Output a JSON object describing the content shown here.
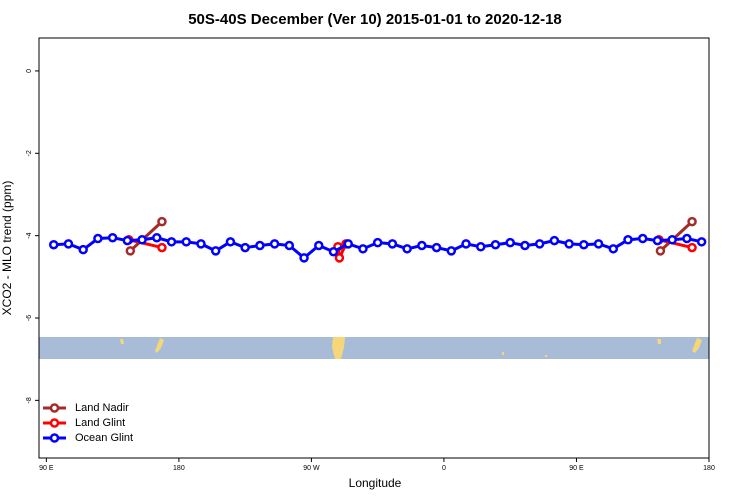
{
  "chart_data": {
    "type": "line",
    "title": "50S-40S December (Ver 10)   2015-01-01 to 2020-12-18",
    "x_label": "Longitude",
    "y_label": "XCO2 - MLO trend (ppm)",
    "xlim": [
      85,
      540
    ],
    "ylim": [
      -9.4,
      0.8
    ],
    "xticks": [
      {
        "value": 90,
        "label": "90 E"
      },
      180,
      {
        "value": 270,
        "label": "90 W"
      },
      {
        "value": 360,
        "label": "0"
      },
      {
        "value": 450,
        "label": "90 E"
      },
      {
        "value": 540,
        "label": "180"
      }
    ],
    "yticks": [
      0,
      -2,
      -4,
      -6,
      -8
    ],
    "legend": "bottom-left",
    "series": [
      {
        "name": "Land Nadir",
        "color": "#a52a2a",
        "x": [
          147,
          168.5,
          null,
          507,
          528.5
        ],
        "values": [
          -4.37,
          -3.66,
          null,
          -4.37,
          -3.66
        ]
      },
      {
        "name": "Land Glint",
        "color": "#ff0000",
        "x": [
          146,
          168.5,
          null,
          288,
          289,
          293.5,
          null,
          506,
          528.5
        ],
        "values": [
          -4.1,
          -4.29,
          null,
          -4.27,
          -4.54,
          -4.2,
          null,
          -4.1,
          -4.29
        ]
      },
      {
        "name": "Ocean Glint",
        "color": "#0000ff",
        "x": [
          95,
          105,
          115,
          125,
          135,
          145,
          155,
          165,
          175,
          185,
          195,
          205,
          215,
          225,
          235,
          245,
          255,
          265,
          275,
          285,
          295,
          305,
          315,
          325,
          335,
          345,
          355,
          365,
          375,
          385,
          395,
          405,
          415,
          425,
          435,
          445,
          455,
          465,
          475,
          485,
          495,
          505,
          515,
          525,
          535
        ],
        "values": [
          -4.22,
          -4.2,
          -4.34,
          -4.07,
          -4.05,
          -4.12,
          -4.1,
          -4.05,
          -4.15,
          -4.15,
          -4.2,
          -4.37,
          -4.15,
          -4.29,
          -4.24,
          -4.2,
          -4.24,
          -4.54,
          -4.24,
          -4.39,
          -4.2,
          -4.32,
          -4.17,
          -4.2,
          -4.32,
          -4.24,
          -4.29,
          -4.37,
          -4.2,
          -4.27,
          -4.22,
          -4.17,
          -4.24,
          -4.2,
          -4.12,
          -4.2,
          -4.22,
          -4.2,
          -4.32,
          -4.1,
          -4.07,
          -4.12,
          -4.1,
          -4.07,
          -4.15
        ]
      }
    ]
  }
}
